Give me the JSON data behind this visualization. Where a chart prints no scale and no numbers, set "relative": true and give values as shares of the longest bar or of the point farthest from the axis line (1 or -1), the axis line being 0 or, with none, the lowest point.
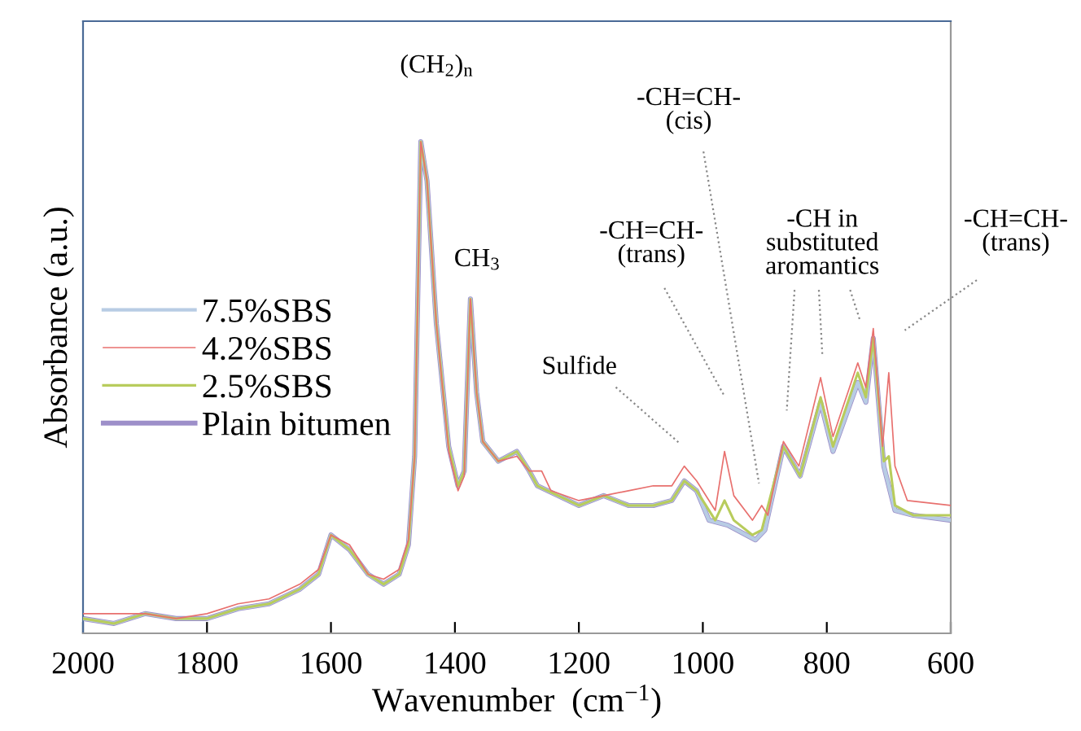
{
  "chart_data": {
    "type": "line",
    "relative": true,
    "xlabel": "Wavenumber  (cm$^{−1}$)",
    "ylabel": "Absorbance (a.u.)",
    "xlim": [
      2000,
      600
    ],
    "xticks": [
      2000,
      1800,
      1600,
      1400,
      1200,
      1000,
      800,
      600
    ],
    "grid": false,
    "legend": "left",
    "marker": "none",
    "line_style": "solid",
    "series": [
      {
        "name": "7.5%SBS",
        "color": "#b8cce4",
        "x": [
          2000,
          1950,
          1900,
          1850,
          1800,
          1750,
          1700,
          1650,
          1620,
          1600,
          1570,
          1540,
          1515,
          1490,
          1475,
          1465,
          1455,
          1445,
          1430,
          1410,
          1395,
          1385,
          1375,
          1365,
          1355,
          1330,
          1300,
          1280,
          1267,
          1200,
          1160,
          1120,
          1080,
          1050,
          1030,
          1010,
          990,
          960,
          915,
          900,
          870,
          843,
          810,
          790,
          750,
          737,
          725,
          708,
          690,
          660,
          600
        ],
        "values": [
          0.03,
          0.02,
          0.04,
          0.03,
          0.03,
          0.05,
          0.06,
          0.09,
          0.12,
          0.2,
          0.17,
          0.12,
          0.1,
          0.12,
          0.18,
          0.36,
          1.0,
          0.92,
          0.63,
          0.38,
          0.3,
          0.33,
          0.68,
          0.49,
          0.39,
          0.35,
          0.37,
          0.33,
          0.3,
          0.26,
          0.28,
          0.26,
          0.26,
          0.27,
          0.31,
          0.29,
          0.23,
          0.22,
          0.19,
          0.21,
          0.38,
          0.32,
          0.47,
          0.37,
          0.51,
          0.47,
          0.6,
          0.34,
          0.25,
          0.24,
          0.23
        ]
      },
      {
        "name": "4.2%SBS",
        "color": "#e8706e",
        "x": [
          2000,
          1950,
          1900,
          1850,
          1800,
          1750,
          1700,
          1650,
          1620,
          1600,
          1570,
          1540,
          1515,
          1490,
          1475,
          1465,
          1455,
          1445,
          1430,
          1410,
          1395,
          1385,
          1375,
          1365,
          1355,
          1330,
          1300,
          1280,
          1260,
          1245,
          1200,
          1160,
          1120,
          1080,
          1050,
          1030,
          1010,
          980,
          965,
          950,
          920,
          905,
          895,
          870,
          845,
          810,
          790,
          750,
          737,
          725,
          710,
          700,
          690,
          670,
          600
        ],
        "values": [
          0.04,
          0.04,
          0.04,
          0.03,
          0.04,
          0.06,
          0.07,
          0.1,
          0.13,
          0.2,
          0.18,
          0.12,
          0.11,
          0.13,
          0.19,
          0.36,
          1.0,
          0.92,
          0.63,
          0.37,
          0.29,
          0.32,
          0.68,
          0.49,
          0.39,
          0.35,
          0.36,
          0.33,
          0.33,
          0.29,
          0.27,
          0.28,
          0.29,
          0.3,
          0.3,
          0.34,
          0.31,
          0.25,
          0.37,
          0.28,
          0.23,
          0.26,
          0.24,
          0.39,
          0.34,
          0.52,
          0.4,
          0.55,
          0.5,
          0.62,
          0.38,
          0.53,
          0.34,
          0.27,
          0.26
        ]
      },
      {
        "name": "2.5%SBS",
        "color": "#b8cc5c",
        "x": [
          2000,
          1950,
          1900,
          1850,
          1800,
          1750,
          1700,
          1650,
          1620,
          1600,
          1570,
          1540,
          1515,
          1490,
          1475,
          1465,
          1455,
          1445,
          1430,
          1410,
          1395,
          1385,
          1375,
          1365,
          1355,
          1330,
          1300,
          1280,
          1267,
          1200,
          1160,
          1120,
          1080,
          1050,
          1030,
          1010,
          980,
          965,
          950,
          920,
          905,
          870,
          843,
          810,
          790,
          750,
          737,
          725,
          708,
          700,
          690,
          660,
          600
        ],
        "values": [
          0.03,
          0.02,
          0.04,
          0.03,
          0.03,
          0.05,
          0.06,
          0.09,
          0.12,
          0.2,
          0.17,
          0.12,
          0.1,
          0.12,
          0.18,
          0.36,
          1.0,
          0.92,
          0.63,
          0.38,
          0.3,
          0.33,
          0.68,
          0.49,
          0.39,
          0.35,
          0.37,
          0.33,
          0.3,
          0.26,
          0.28,
          0.26,
          0.26,
          0.27,
          0.31,
          0.29,
          0.23,
          0.27,
          0.23,
          0.2,
          0.21,
          0.38,
          0.32,
          0.48,
          0.38,
          0.53,
          0.48,
          0.6,
          0.35,
          0.36,
          0.26,
          0.24,
          0.24
        ]
      },
      {
        "name": "Plain bitumen",
        "color": "#9d8fc9",
        "x": [
          2000,
          1950,
          1900,
          1850,
          1800,
          1750,
          1700,
          1650,
          1620,
          1600,
          1570,
          1540,
          1515,
          1490,
          1475,
          1465,
          1455,
          1445,
          1430,
          1410,
          1395,
          1385,
          1375,
          1365,
          1355,
          1330,
          1300,
          1280,
          1267,
          1200,
          1160,
          1120,
          1080,
          1050,
          1030,
          1010,
          990,
          960,
          915,
          900,
          870,
          843,
          810,
          790,
          750,
          737,
          725,
          708,
          690,
          660,
          600
        ],
        "values": [
          0.03,
          0.02,
          0.04,
          0.03,
          0.03,
          0.05,
          0.06,
          0.09,
          0.12,
          0.2,
          0.17,
          0.12,
          0.1,
          0.12,
          0.18,
          0.36,
          1.0,
          0.92,
          0.63,
          0.38,
          0.3,
          0.33,
          0.68,
          0.49,
          0.39,
          0.35,
          0.37,
          0.33,
          0.3,
          0.26,
          0.28,
          0.26,
          0.26,
          0.27,
          0.31,
          0.29,
          0.23,
          0.22,
          0.19,
          0.21,
          0.38,
          0.32,
          0.47,
          0.37,
          0.51,
          0.47,
          0.6,
          0.34,
          0.25,
          0.24,
          0.23
        ]
      }
    ],
    "annotations": [
      {
        "text": "(CH$_{2}$)$_{n}$",
        "x": 1455,
        "y": 1.0
      },
      {
        "text": "CH$_{3}$",
        "x": 1375,
        "y": 0.68
      },
      "Sulfide",
      "-CH=CH-\n(trans)",
      "-CH=CH-\n(cis)",
      "-CH in\nsubstituted\naromantics",
      "-CH=CH-\n(trans)"
    ]
  }
}
